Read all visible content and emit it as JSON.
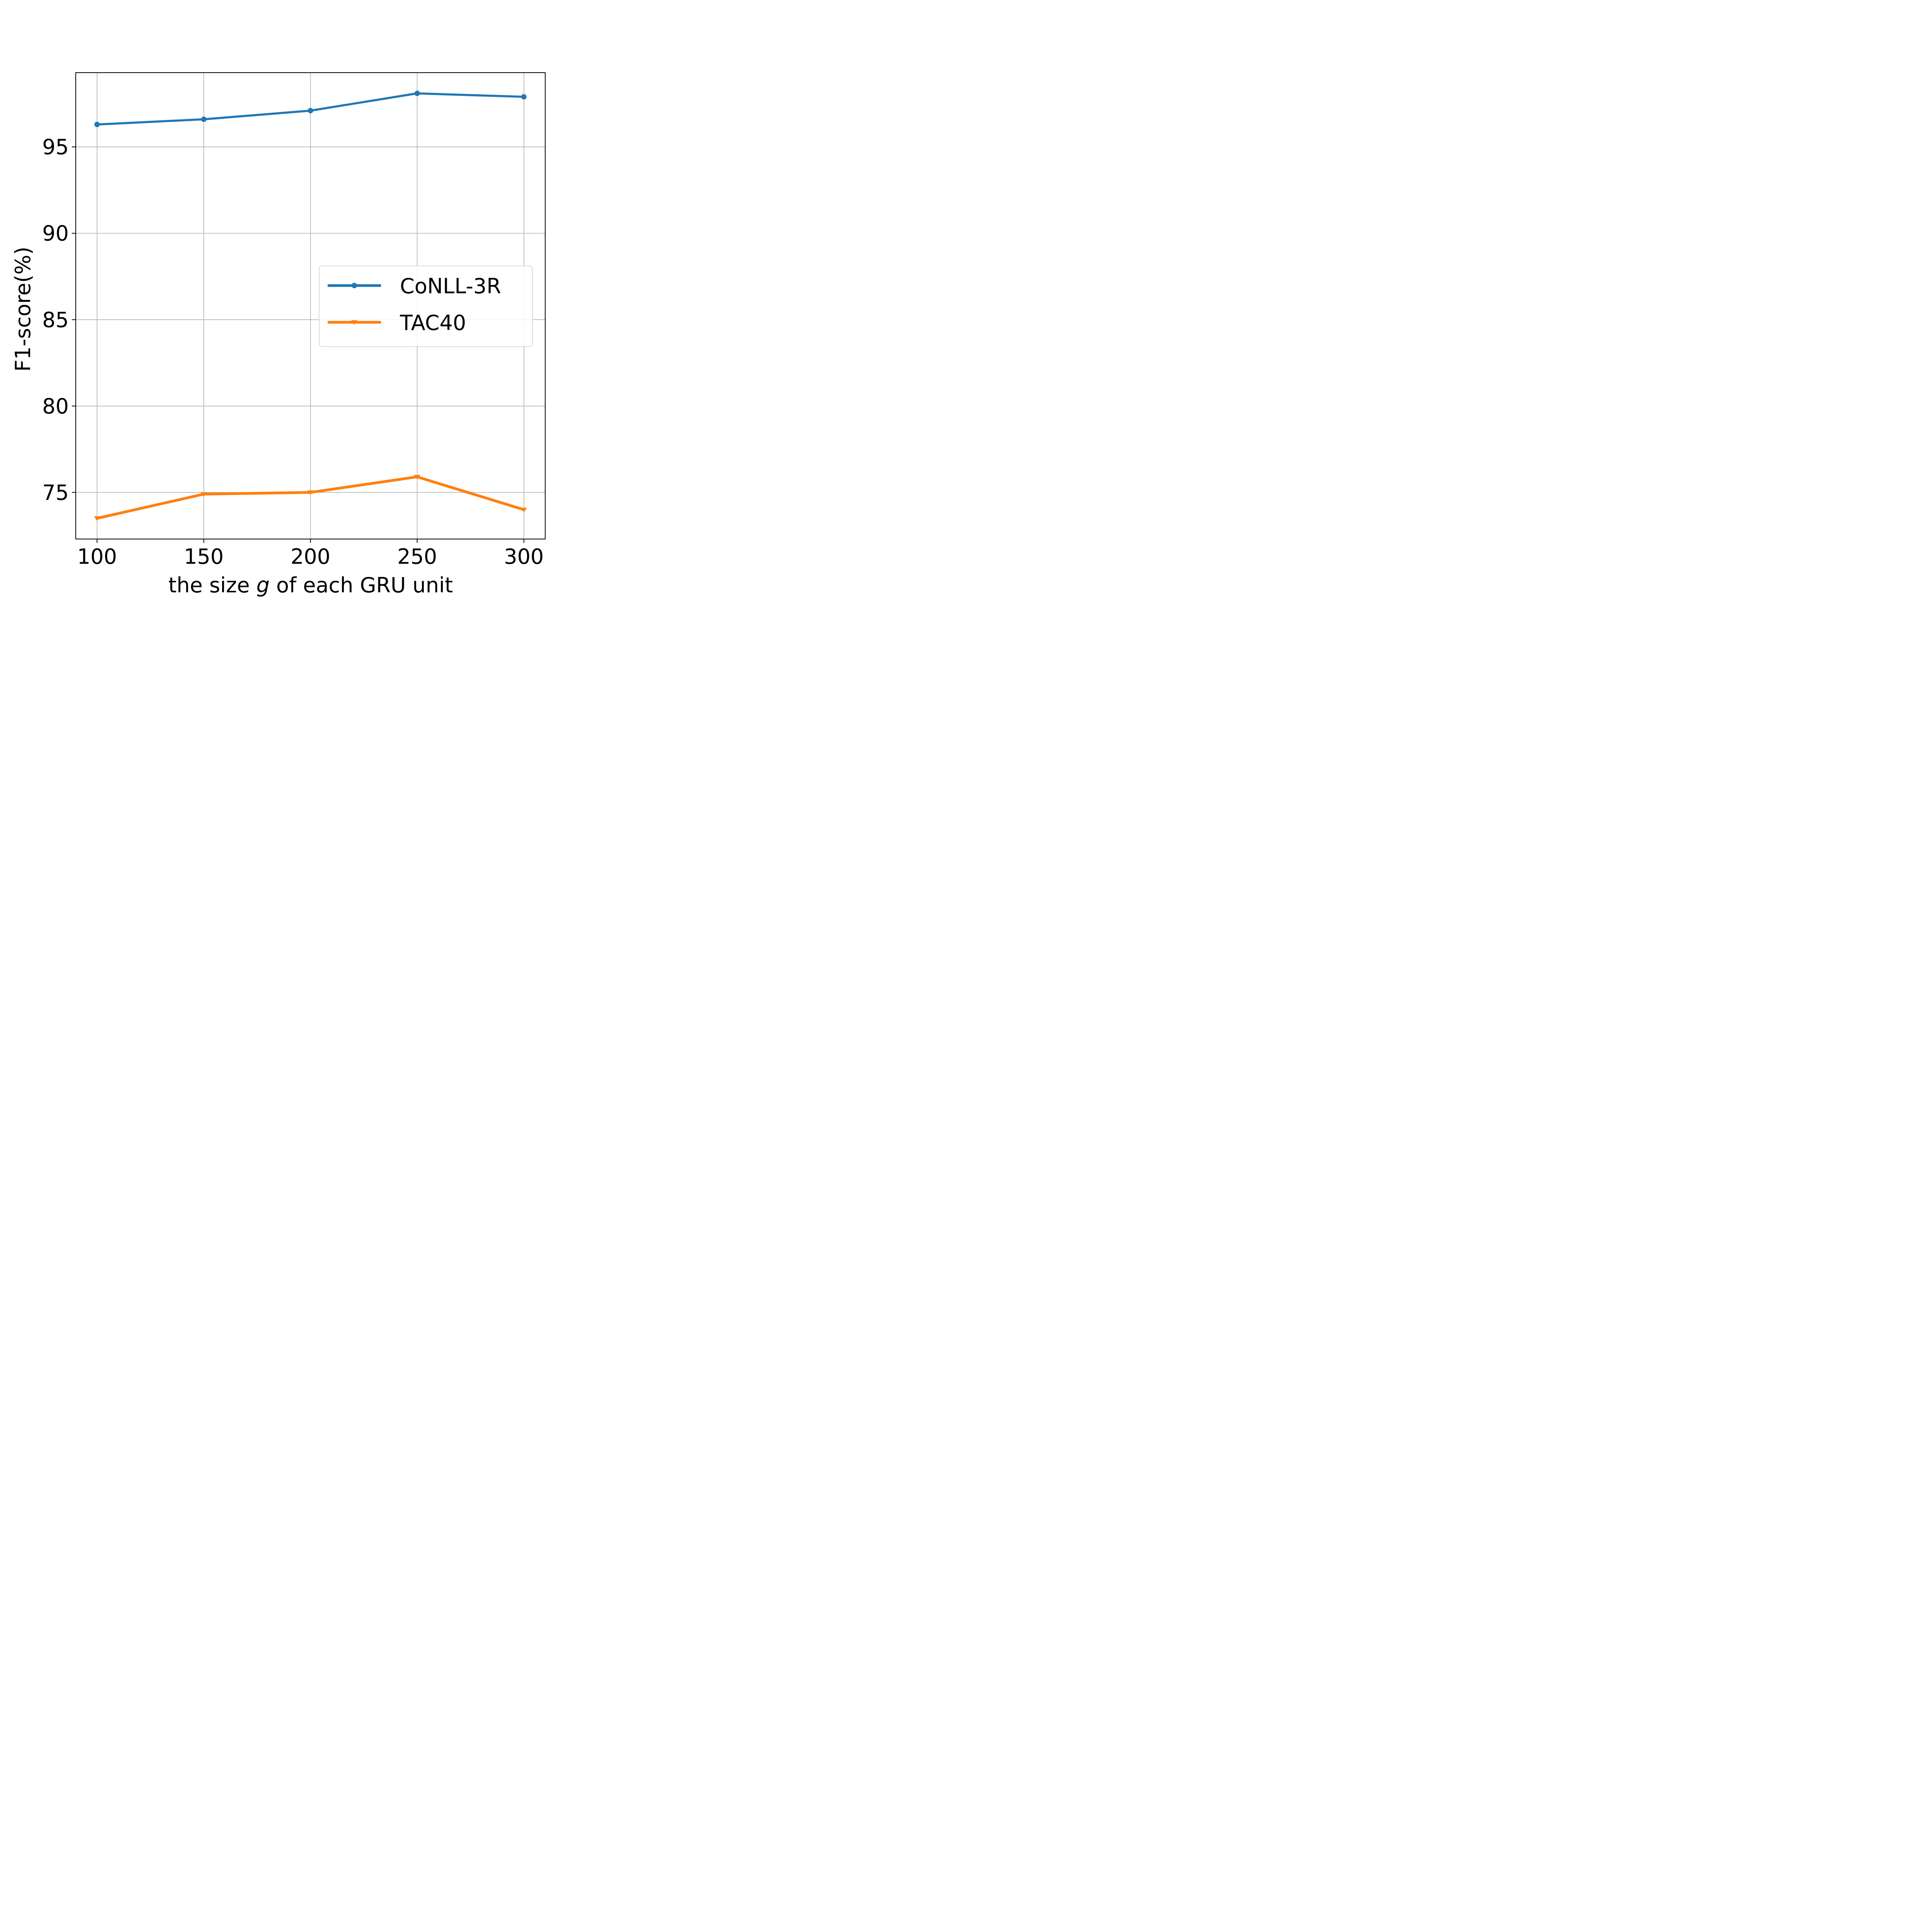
{
  "chart_data": {
    "type": "line",
    "title": "",
    "xlabel_parts": [
      {
        "text": "the size ",
        "italic": false
      },
      {
        "text": "g",
        "italic": true
      },
      {
        "text": " of each GRU unit",
        "italic": false
      }
    ],
    "xlabel": "the size g of each GRU unit",
    "ylabel": "F1-score(%)",
    "x": [
      100,
      150,
      200,
      250,
      300
    ],
    "x_ticks": [
      "100",
      "150",
      "200",
      "250",
      "300"
    ],
    "y_ticks": [
      "75",
      "80",
      "85",
      "90",
      "95"
    ],
    "y_tick_values": [
      75,
      80,
      85,
      90,
      95
    ],
    "xlim": [
      90,
      310
    ],
    "ylim": [
      72.3,
      99.3
    ],
    "grid": true,
    "legend_position": "center-right",
    "series": [
      {
        "name": "CoNLL-3R",
        "color": "#1f77b4",
        "marker": "circle",
        "values": [
          96.3,
          96.6,
          97.1,
          98.1,
          97.9
        ]
      },
      {
        "name": "TAC40",
        "color": "#ff7f0e",
        "marker": "triangle-down",
        "values": [
          73.5,
          74.9,
          75.0,
          75.9,
          74.0
        ]
      }
    ]
  }
}
